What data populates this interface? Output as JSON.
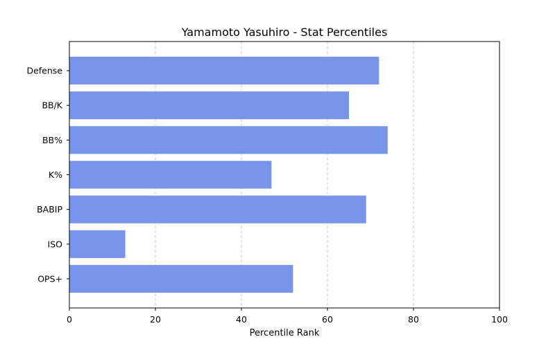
{
  "colors": {
    "bar": "#7895e9",
    "grid": "#c8c8c8",
    "axis": "#000000",
    "background": "#ffffff"
  },
  "chart_data": {
    "type": "bar",
    "orientation": "horizontal",
    "title": "Yamamoto Yasuhiro - Stat Percentiles",
    "xlabel": "Percentile Rank",
    "ylabel": "",
    "categories": [
      "Defense",
      "BB/K",
      "BB%",
      "K%",
      "BABIP",
      "ISO",
      "OPS+"
    ],
    "values": [
      72,
      65,
      74,
      47,
      69,
      13,
      52
    ],
    "xlim": [
      0,
      100
    ],
    "xticks": [
      0,
      20,
      40,
      60,
      80,
      100
    ],
    "xtick_labels": [
      "0",
      "20",
      "40",
      "60",
      "80",
      "100"
    ],
    "grid": "x-axis dashed",
    "legend": "none"
  }
}
